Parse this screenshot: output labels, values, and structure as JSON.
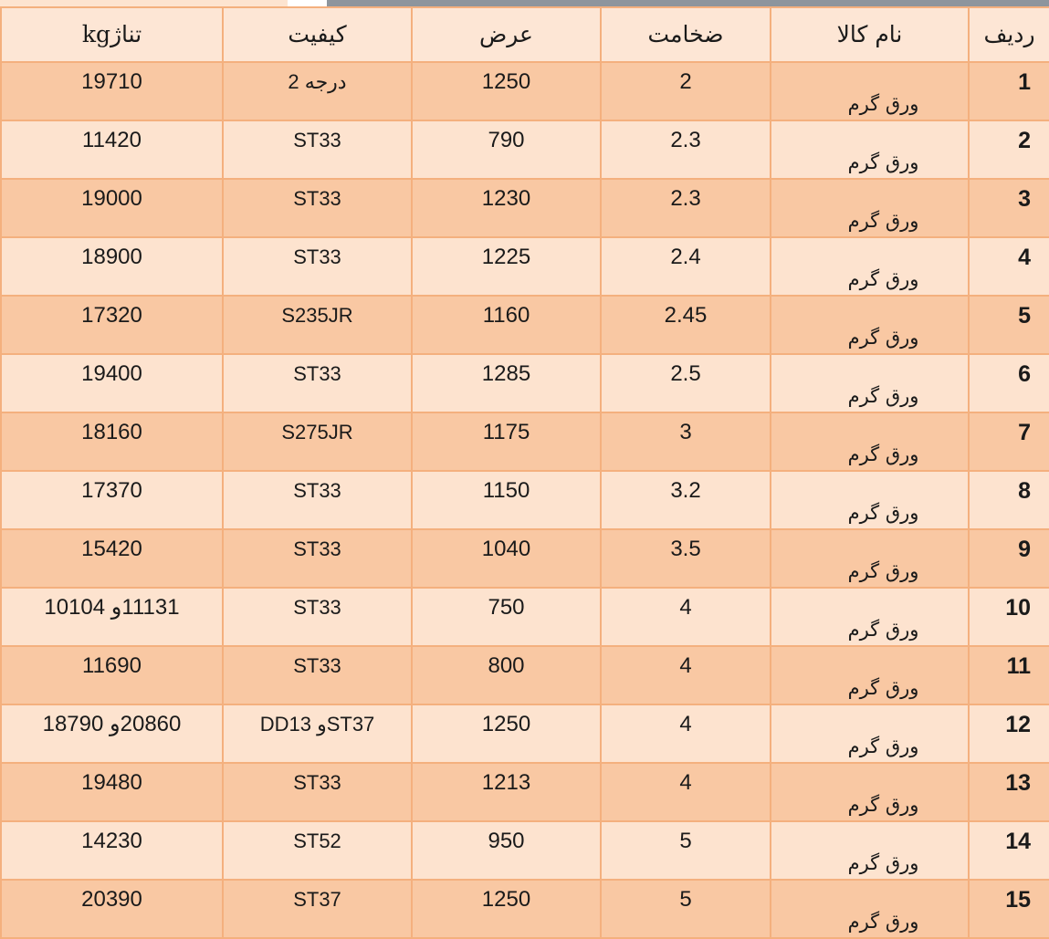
{
  "columns": [
    "ردیف",
    "نام کالا",
    "ضخامت",
    "عرض",
    "کیفیت",
    "تناژkg"
  ],
  "rows": [
    {
      "no": "1",
      "name": "ورق گرم",
      "thickness": "2",
      "width": "1250",
      "quality": "درجه 2",
      "tonnage": "19710"
    },
    {
      "no": "2",
      "name": "ورق گرم",
      "thickness": "2.3",
      "width": "790",
      "quality": "ST33",
      "tonnage": "11420"
    },
    {
      "no": "3",
      "name": "ورق گرم",
      "thickness": "2.3",
      "width": "1230",
      "quality": "ST33",
      "tonnage": "19000"
    },
    {
      "no": "4",
      "name": "ورق گرم",
      "thickness": "2.4",
      "width": "1225",
      "quality": "ST33",
      "tonnage": "18900"
    },
    {
      "no": "5",
      "name": "ورق گرم",
      "thickness": "2.45",
      "width": "1160",
      "quality": "S235JR",
      "tonnage": "17320"
    },
    {
      "no": "6",
      "name": "ورق گرم",
      "thickness": "2.5",
      "width": "1285",
      "quality": "ST33",
      "tonnage": "19400"
    },
    {
      "no": "7",
      "name": "ورق گرم",
      "thickness": "3",
      "width": "1175",
      "quality": "S275JR",
      "tonnage": "18160"
    },
    {
      "no": "8",
      "name": "ورق گرم",
      "thickness": "3.2",
      "width": "1150",
      "quality": "ST33",
      "tonnage": "17370"
    },
    {
      "no": "9",
      "name": "ورق گرم",
      "thickness": "3.5",
      "width": "1040",
      "quality": "ST33",
      "tonnage": "15420"
    },
    {
      "no": "10",
      "name": "ورق گرم",
      "thickness": "4",
      "width": "750",
      "quality": "ST33",
      "tonnage": "11131و 10104"
    },
    {
      "no": "11",
      "name": "ورق گرم",
      "thickness": "4",
      "width": "800",
      "quality": "ST33",
      "tonnage": "11690"
    },
    {
      "no": "12",
      "name": "ورق گرم",
      "thickness": "4",
      "width": "1250",
      "quality": "ST37و DD13",
      "tonnage": "20860و 18790"
    },
    {
      "no": "13",
      "name": "ورق گرم",
      "thickness": "4",
      "width": "1213",
      "quality": "ST33",
      "tonnage": "19480"
    },
    {
      "no": "14",
      "name": "ورق گرم",
      "thickness": "5",
      "width": "950",
      "quality": "ST52",
      "tonnage": "14230"
    },
    {
      "no": "15",
      "name": "ورق گرم",
      "thickness": "5",
      "width": "1250",
      "quality": "ST37",
      "tonnage": "20390"
    }
  ],
  "colors": {
    "header_bg": "#fde6d5",
    "row_dark": "#f9c8a3",
    "row_light": "#fde3cf",
    "border": "#f4b07e"
  }
}
